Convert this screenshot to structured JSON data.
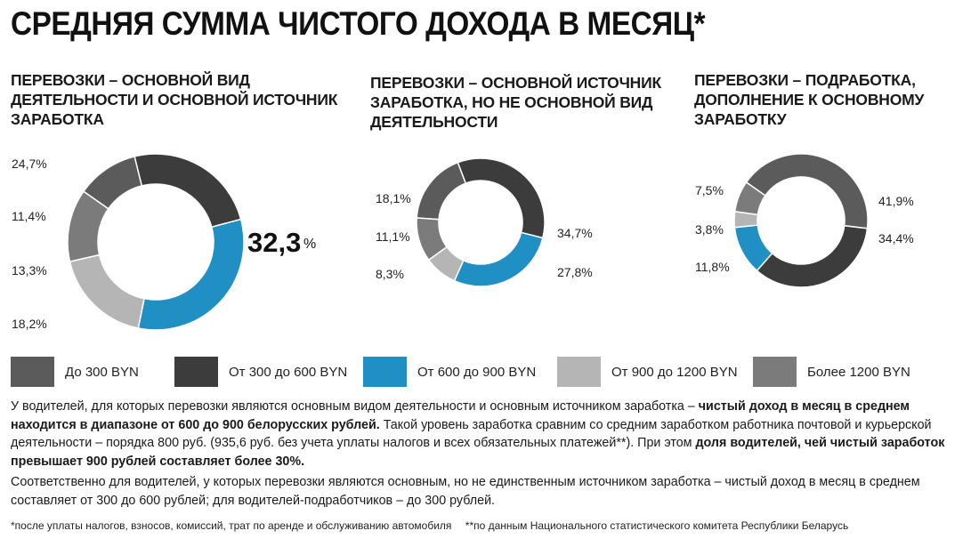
{
  "title": "СРЕДНЯЯ СУММА ЧИСТОГО ДОХОДА В МЕСЯЦ*",
  "colors": {
    "up_to_300": "#5b5b5b",
    "300_to_600": "#3c3c3c",
    "600_to_900": "#1f8fc4",
    "900_to_1200": "#b5b5b5",
    "over_1200": "#7b7b7b"
  },
  "legend": [
    {
      "label": "До 300 BYN",
      "color": "#5b5b5b"
    },
    {
      "label": "От 300 до 600 BYN",
      "color": "#3c3c3c"
    },
    {
      "label": "От 600 до 900 BYN",
      "color": "#1f8fc4"
    },
    {
      "label": "От 900 до 1200 BYN",
      "color": "#b5b5b5"
    },
    {
      "label": "Более 1200 BYN",
      "color": "#7b7b7b"
    }
  ],
  "chart_data": [
    {
      "type": "pie",
      "title_lines": [
        "ПЕРЕВОЗКИ – ОСНОВНОЙ ВИД",
        "ДЕЯТЕЛЬНОСТИ И ОСНОВНОЙ ИСТОЧНИК",
        "ЗАРАБОТКА"
      ],
      "categories": [
        "До 300 BYN",
        "От 300 до 600 BYN",
        "От 600 до 900 BYN",
        "От 900 до 1200 BYN",
        "Более 1200 BYN"
      ],
      "values": [
        11.4,
        24.7,
        32.3,
        18.2,
        13.3
      ],
      "labels": [
        "11,4%",
        "24,7%",
        "32,3",
        "18,2%",
        "13,3%"
      ],
      "highlight": {
        "value": "32,3",
        "unit": "%"
      }
    },
    {
      "type": "pie",
      "title_lines": [
        "ПЕРЕВОЗКИ – ОСНОВНОЙ ИСТОЧНИК",
        "ЗАРАБОТКА, НО НЕ ОСНОВНОЙ ВИД",
        "ДЕЯТЕЛЬНОСТИ"
      ],
      "categories": [
        "До 300 BYN",
        "От 300 до 600 BYN",
        "От 600 до 900 BYN",
        "От 900 до 1200 BYN",
        "Более 1200 BYN"
      ],
      "values": [
        18.1,
        34.7,
        27.8,
        8.3,
        11.1
      ],
      "labels": [
        "18,1%",
        "34,7%",
        "27,8%",
        "8,3%",
        "11,1%"
      ]
    },
    {
      "type": "pie",
      "title_lines": [
        "ПЕРЕВОЗКИ – ПОДРАБОТКА,",
        "ДОПОЛНЕНИЕ К ОСНОВНОМУ",
        "ЗАРАБОТКУ"
      ],
      "categories": [
        "До 300 BYN",
        "От 300 до 600 BYN",
        "От 600 до 900 BYN",
        "От 900 до 1200 BYN",
        "Более 1200 BYN"
      ],
      "values": [
        41.9,
        34.4,
        11.8,
        3.8,
        7.5
      ],
      "labels": [
        "41,9%",
        "34,4%",
        "11,8%",
        "3,8%",
        "7,5%"
      ]
    }
  ],
  "paragraph1": {
    "t1": "У водителей, для которых перевозки являются основным видом деятельности и основным источником заработка – ",
    "b1": "чистый доход в месяц в среднем находится в диапазоне от 600 до 900 белорусских рублей.",
    "t2": " Такой уровень заработка сравним со средним заработком работника почтовой и курьерской деятельности – порядка 800 руб. (935,6 руб. без учета уплаты налогов и всех обязательных платежей**). При этом ",
    "b2": "доля водителей, чей чистый заработок превышает 900 рублей составляет более 30%."
  },
  "paragraph2": "Соответственно для водителей, у которых перевозки являются основным, но не единственным источником заработка – чистый доход в месяц в среднем составляет от 300 до 600 рублей; для водителей-подработчиков – до 300 рублей.",
  "footnotes": [
    "*после уплаты налогов, взносов, комиссий, трат по аренде и обслуживанию автомобиля",
    "**по данным Национального статистического комитета Республики Беларусь"
  ]
}
